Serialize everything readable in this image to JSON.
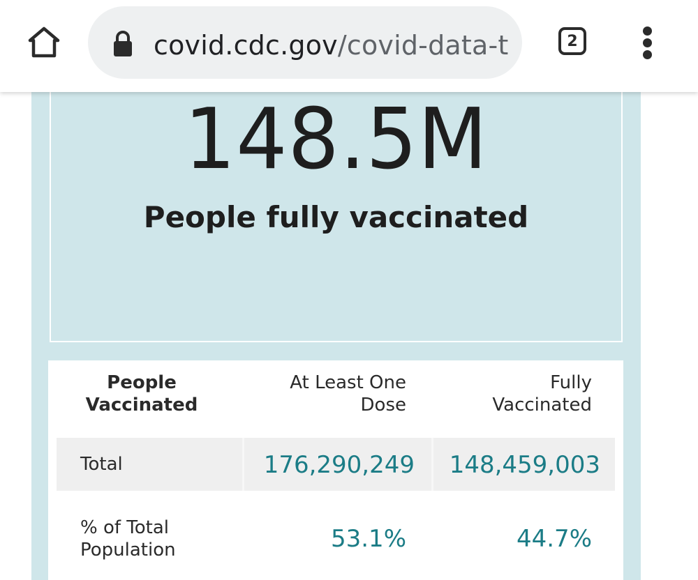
{
  "browser": {
    "url_domain": "covid.cdc.gov",
    "url_path": "/covid-data-tra",
    "tab_count": "2",
    "icons": [
      "home-icon",
      "lock-icon",
      "tab-switcher-icon",
      "overflow-menu-icon"
    ]
  },
  "hero": {
    "number": "148.5M",
    "label": "People fully vaccinated"
  },
  "table": {
    "headers": [
      "People Vaccinated",
      "At Least One Dose",
      "Fully Vaccinated"
    ],
    "rows": [
      {
        "label": "Total",
        "at_least_one": "176,290,249",
        "fully": "148,459,003"
      },
      {
        "label": "% of Total Population",
        "at_least_one": "53.1%",
        "fully": "44.7%"
      }
    ]
  },
  "colors": {
    "panel_bg": "#cfe6ea",
    "value_text": "#1b7c86",
    "row_highlight": "#efefef"
  }
}
